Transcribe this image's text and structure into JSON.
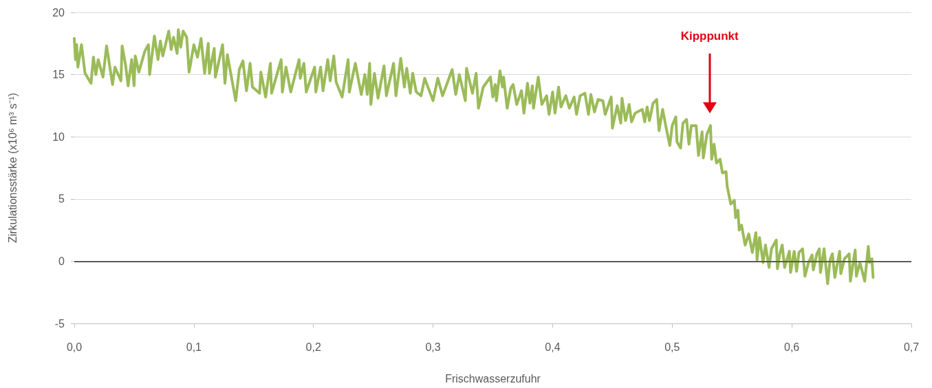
{
  "chart_data": {
    "type": "line",
    "xlabel": "Frischwasserzufuhr",
    "ylabel": "Zirkulationsstärke (x10⁶ m³ s⁻¹)",
    "x": [
      0,
      0.001,
      0.002,
      0.003,
      0.006,
      0.009,
      0.014,
      0.016,
      0.018,
      0.02,
      0.024,
      0.027,
      0.032,
      0.034,
      0.039,
      0.04,
      0.043,
      0.045,
      0.048,
      0.05,
      0.051,
      0.054,
      0.059,
      0.062,
      0.063,
      0.067,
      0.07,
      0.072,
      0.074,
      0.079,
      0.081,
      0.083,
      0.086,
      0.087,
      0.089,
      0.091,
      0.094,
      0.096,
      0.1,
      0.103,
      0.106,
      0.109,
      0.112,
      0.113,
      0.117,
      0.118,
      0.124,
      0.126,
      0.128,
      0.135,
      0.138,
      0.141,
      0.144,
      0.147,
      0.149,
      0.155,
      0.156,
      0.16,
      0.164,
      0.165,
      0.173,
      0.174,
      0.177,
      0.181,
      0.188,
      0.189,
      0.192,
      0.194,
      0.201,
      0.202,
      0.206,
      0.208,
      0.212,
      0.214,
      0.217,
      0.219,
      0.224,
      0.229,
      0.23,
      0.235,
      0.24,
      0.243,
      0.245,
      0.247,
      0.248,
      0.251,
      0.254,
      0.259,
      0.261,
      0.267,
      0.269,
      0.273,
      0.276,
      0.278,
      0.281,
      0.283,
      0.286,
      0.29,
      0.293,
      0.3,
      0.304,
      0.308,
      0.316,
      0.319,
      0.322,
      0.327,
      0.328,
      0.333,
      0.336,
      0.338,
      0.342,
      0.348,
      0.35,
      0.352,
      0.353,
      0.356,
      0.358,
      0.359,
      0.362,
      0.365,
      0.367,
      0.37,
      0.374,
      0.376,
      0.379,
      0.381,
      0.383,
      0.384,
      0.388,
      0.391,
      0.395,
      0.397,
      0.4,
      0.402,
      0.405,
      0.407,
      0.411,
      0.414,
      0.418,
      0.42,
      0.423,
      0.427,
      0.43,
      0.432,
      0.435,
      0.438,
      0.442,
      0.444,
      0.449,
      0.45,
      0.454,
      0.457,
      0.458,
      0.461,
      0.464,
      0.466,
      0.469,
      0.475,
      0.477,
      0.479,
      0.481,
      0.484,
      0.487,
      0.489,
      0.492,
      0.495,
      0.498,
      0.5,
      0.503,
      0.504,
      0.507,
      0.509,
      0.512,
      0.514,
      0.516,
      0.52,
      0.522,
      0.525,
      0.526,
      0.529,
      0.532,
      0.533,
      0.535,
      0.537,
      0.54,
      0.542,
      0.545,
      0.546,
      0.549,
      0.552,
      0.553,
      0.555,
      0.556,
      0.558,
      0.561,
      0.564,
      0.567,
      0.57,
      0.571,
      0.573,
      0.576,
      0.578,
      0.581,
      0.583,
      0.587,
      0.588,
      0.59,
      0.592,
      0.594,
      0.598,
      0.599,
      0.602,
      0.604,
      0.606,
      0.609,
      0.611,
      0.614,
      0.617,
      0.618,
      0.621,
      0.623,
      0.624,
      0.627,
      0.63,
      0.632,
      0.634,
      0.636,
      0.64,
      0.641,
      0.644,
      0.648,
      0.649,
      0.653,
      0.654,
      0.657,
      0.661,
      0.664,
      0.665,
      0.667,
      0.668
    ],
    "series": [
      {
        "color": "#9bbb59",
        "values": [
          17.9,
          16.2,
          17.4,
          15.6,
          17.4,
          15.1,
          14.3,
          16.4,
          15.0,
          16.2,
          14.8,
          17.3,
          14.2,
          15.6,
          14.5,
          17.3,
          15.7,
          14.1,
          16.2,
          14.1,
          16.5,
          15.2,
          16.9,
          17.4,
          15.0,
          18.1,
          16.2,
          17.7,
          16.5,
          18.5,
          17.0,
          18.0,
          16.7,
          18.6,
          17.2,
          18.5,
          18.0,
          15.2,
          17.4,
          16.4,
          17.9,
          15.1,
          17.5,
          15.1,
          17.1,
          14.8,
          17.4,
          14.3,
          16.6,
          12.9,
          15.4,
          16.1,
          13.7,
          15.9,
          14.0,
          13.5,
          15.2,
          13.2,
          15.9,
          13.5,
          16.2,
          13.6,
          15.6,
          13.6,
          16.2,
          14.7,
          15.9,
          13.6,
          15.6,
          13.6,
          15.6,
          13.7,
          16.2,
          14.5,
          16.5,
          14.4,
          13.2,
          16.2,
          13.6,
          15.9,
          13.4,
          15.0,
          13.4,
          15.9,
          12.6,
          15.1,
          13.1,
          15.7,
          13.3,
          15.9,
          13.3,
          16.3,
          14.0,
          15.5,
          13.5,
          15.1,
          13.6,
          13.3,
          14.7,
          12.9,
          14.7,
          13.3,
          15.4,
          13.4,
          15.0,
          12.9,
          15.5,
          13.5,
          15.1,
          12.3,
          14.0,
          14.8,
          13.2,
          14.2,
          12.9,
          15.3,
          14.0,
          14.8,
          12.3,
          13.9,
          14.2,
          12.6,
          13.7,
          11.9,
          14.3,
          12.7,
          14.1,
          12.3,
          14.8,
          12.6,
          13.3,
          11.8,
          13.6,
          11.9,
          14.0,
          12.4,
          13.3,
          12.3,
          13.2,
          11.8,
          13.3,
          13.5,
          11.8,
          13.4,
          12.0,
          13.0,
          12.9,
          11.8,
          13.2,
          10.7,
          12.5,
          11.1,
          13.1,
          11.3,
          12.6,
          11.2,
          11.9,
          12.2,
          11.2,
          12.4,
          11.3,
          12.7,
          13.0,
          10.5,
          12.2,
          10.7,
          9.3,
          10.9,
          11.6,
          9.6,
          9.1,
          11.1,
          11.4,
          9.4,
          10.9,
          10.9,
          8.5,
          10.4,
          8.3,
          10.2,
          10.9,
          8.2,
          9.4,
          7.9,
          8.2,
          7.1,
          7.2,
          6.0,
          4.6,
          4.9,
          3.5,
          4.1,
          2.5,
          2.9,
          1.3,
          2.2,
          0.7,
          2.3,
          0.1,
          1.9,
          -0.1,
          1.3,
          -0.5,
          1.0,
          1.7,
          -0.6,
          0.6,
          1.3,
          -0.5,
          0.8,
          -0.9,
          0.8,
          -0.8,
          0.7,
          1.0,
          -1.2,
          -0.1,
          0.5,
          -0.7,
          0.6,
          1.0,
          -0.9,
          1.0,
          -1.8,
          0.1,
          0.6,
          -1.3,
          0.8,
          -1.0,
          0.2,
          0.6,
          -1.6,
          0.9,
          -1.2,
          -0.1,
          -1.6,
          1.2,
          -0.1,
          0.2,
          -1.3
        ]
      }
    ],
    "xlim": [
      0,
      0.7
    ],
    "xticks": [
      {
        "value": 0,
        "label": "0,0"
      },
      {
        "value": 0.1,
        "label": "0,1"
      },
      {
        "value": 0.2,
        "label": "0,2"
      },
      {
        "value": 0.3,
        "label": "0,3"
      },
      {
        "value": 0.4,
        "label": "0,4"
      },
      {
        "value": 0.5,
        "label": "0,5"
      },
      {
        "value": 0.6,
        "label": "0,6"
      },
      {
        "value": 0.7,
        "label": "0,7"
      }
    ],
    "ylim": [
      -5,
      20
    ],
    "yticks": [
      -5,
      0,
      5,
      10,
      15,
      20
    ],
    "grid": "y",
    "ref_lines": [
      {
        "axis": "y",
        "value": 0,
        "color": "#595959"
      }
    ],
    "annotations": [
      "Kipppunkt"
    ]
  }
}
